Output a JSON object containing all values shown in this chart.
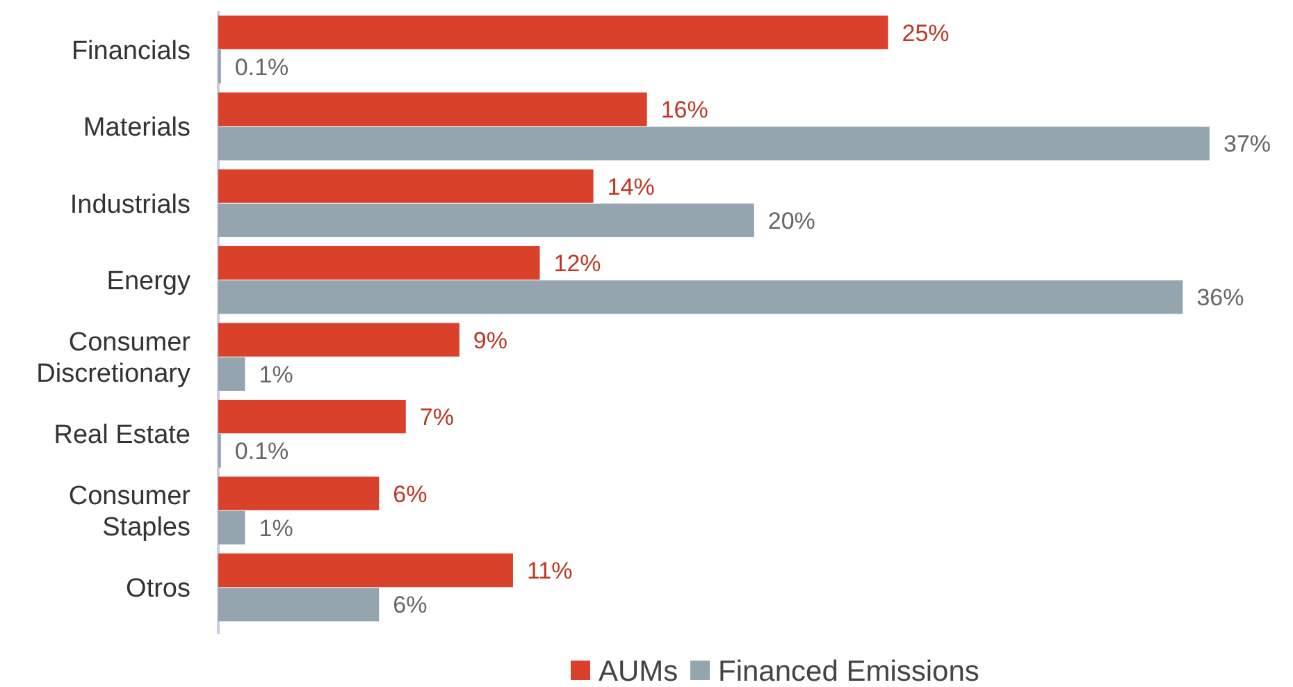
{
  "chart_data": {
    "type": "bar",
    "orientation": "horizontal",
    "categories": [
      "Financials",
      "Materials",
      "Industrials",
      "Energy",
      "Consumer Discretionary",
      "Real Estate",
      "Consumer Staples",
      "Otros"
    ],
    "series": [
      {
        "name": "AUMs",
        "color": "#d9412b",
        "values": [
          25,
          16,
          14,
          12,
          9,
          7,
          6,
          11
        ],
        "value_labels": [
          "25%",
          "16%",
          "14%",
          "12%",
          "9%",
          "7%",
          "6%",
          "11%"
        ]
      },
      {
        "name": "Financed Emissions",
        "color": "#95a5b0",
        "values": [
          0.1,
          37,
          20,
          36,
          1,
          0.1,
          1,
          6
        ],
        "value_labels": [
          "0.1%",
          "37%",
          "20%",
          "36%",
          "1%",
          "0.1%",
          "1%",
          "6%"
        ]
      }
    ],
    "data_labels": true,
    "legend": "bottom"
  }
}
